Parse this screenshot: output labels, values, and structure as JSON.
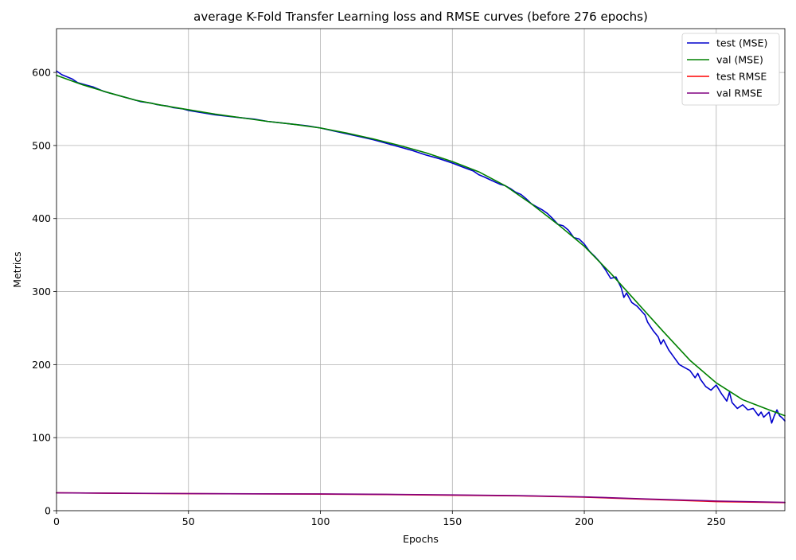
{
  "chart_data": {
    "type": "line",
    "title": "average K-Fold Transfer Learning loss and RMSE curves (before 276 epochs)",
    "xlabel": "Epochs",
    "ylabel": "Metrics",
    "xlim": [
      0,
      276
    ],
    "ylim": [
      0,
      660
    ],
    "xticks": [
      0,
      50,
      100,
      150,
      200,
      250
    ],
    "yticks": [
      0,
      100,
      200,
      300,
      400,
      500,
      600
    ],
    "grid": true,
    "legend_position": "top-right",
    "series": [
      {
        "name": "test (MSE)",
        "color": "#0000cc",
        "x": [
          0,
          2,
          4,
          6,
          8,
          10,
          12,
          14,
          16,
          18,
          20,
          22,
          24,
          26,
          28,
          30,
          32,
          34,
          36,
          38,
          40,
          42,
          44,
          46,
          48,
          50,
          55,
          60,
          65,
          70,
          75,
          80,
          85,
          90,
          95,
          100,
          105,
          110,
          115,
          120,
          125,
          130,
          135,
          140,
          145,
          150,
          155,
          158,
          160,
          162,
          165,
          168,
          170,
          172,
          174,
          176,
          178,
          180,
          182,
          184,
          186,
          188,
          190,
          192,
          194,
          196,
          198,
          200,
          202,
          204,
          206,
          208,
          210,
          212,
          214,
          215,
          216,
          218,
          220,
          222,
          223,
          224,
          226,
          228,
          229,
          230,
          232,
          234,
          236,
          238,
          240,
          242,
          243,
          244,
          246,
          248,
          250,
          252,
          254,
          255,
          256,
          258,
          260,
          262,
          264,
          266,
          267,
          268,
          270,
          271,
          272,
          273,
          274,
          275,
          276
        ],
        "values": [
          602,
          597,
          594,
          591,
          586,
          584,
          582,
          580,
          577,
          574,
          572,
          570,
          568,
          566,
          564,
          562,
          560,
          559,
          558,
          556,
          555,
          554,
          552,
          551,
          550,
          548,
          545,
          542,
          540,
          538,
          536,
          533,
          531,
          529,
          527,
          524,
          520,
          516,
          512,
          508,
          503,
          498,
          493,
          487,
          482,
          476,
          469,
          465,
          460,
          457,
          452,
          447,
          445,
          441,
          436,
          433,
          427,
          420,
          416,
          412,
          407,
          400,
          392,
          390,
          384,
          374,
          372,
          365,
          355,
          348,
          340,
          330,
          318,
          320,
          305,
          292,
          298,
          285,
          280,
          272,
          268,
          258,
          247,
          238,
          228,
          234,
          220,
          210,
          200,
          196,
          192,
          182,
          188,
          180,
          170,
          165,
          172,
          160,
          150,
          162,
          148,
          140,
          145,
          138,
          140,
          130,
          135,
          128,
          135,
          120,
          130,
          138,
          130,
          127,
          123
        ]
      },
      {
        "name": "val (MSE)",
        "color": "#008000",
        "x": [
          0,
          10,
          20,
          30,
          40,
          50,
          60,
          70,
          80,
          90,
          100,
          110,
          120,
          130,
          140,
          150,
          160,
          170,
          180,
          190,
          200,
          210,
          220,
          230,
          240,
          250,
          260,
          270,
          276
        ],
        "values": [
          596,
          583,
          572,
          562,
          555,
          549,
          543,
          538,
          533,
          529,
          524,
          517,
          509,
          500,
          490,
          478,
          464,
          445,
          420,
          392,
          362,
          325,
          285,
          245,
          206,
          175,
          152,
          138,
          130
        ]
      },
      {
        "name": "test RMSE",
        "color": "#ff0000",
        "x": [
          0,
          25,
          50,
          75,
          100,
          125,
          150,
          175,
          200,
          225,
          250,
          276
        ],
        "values": [
          24.5,
          23.8,
          23.3,
          23.0,
          22.7,
          22.1,
          21.2,
          20.3,
          18.6,
          15.4,
          12.5,
          11.1
        ]
      },
      {
        "name": "val RMSE",
        "color": "#800080",
        "x": [
          0,
          25,
          50,
          75,
          100,
          125,
          150,
          175,
          200,
          225,
          250,
          276
        ],
        "values": [
          24.4,
          23.9,
          23.4,
          23.1,
          22.9,
          22.4,
          21.6,
          20.6,
          18.9,
          15.9,
          13.2,
          11.4
        ]
      }
    ]
  }
}
